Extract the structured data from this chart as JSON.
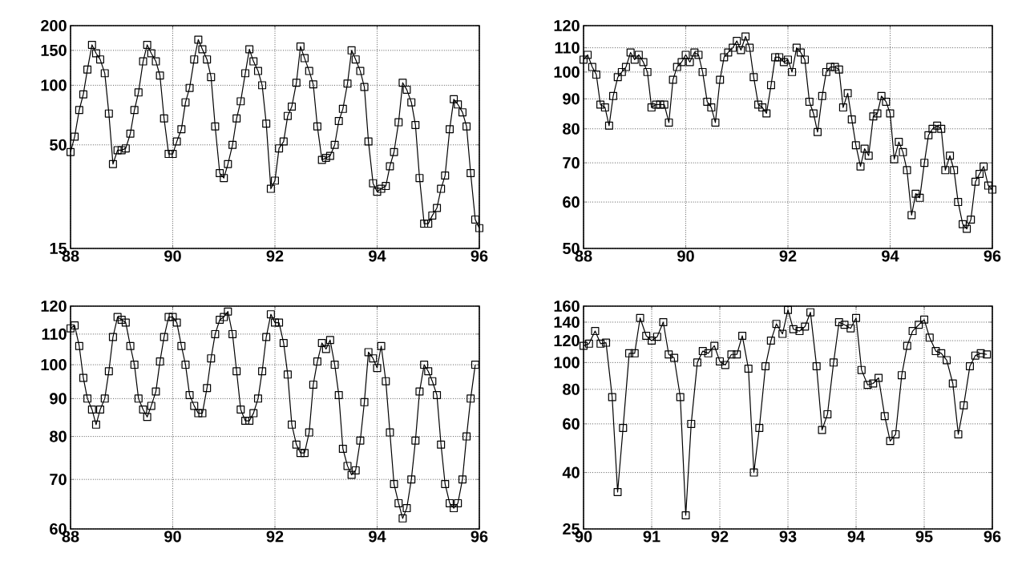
{
  "chart_data": [
    {
      "type": "line",
      "color": "#000000",
      "marker": "square",
      "log": "y",
      "grid": true,
      "xlim": [
        88,
        96
      ],
      "xticks": [
        88,
        90,
        92,
        94,
        96
      ],
      "ylim": [
        15,
        200
      ],
      "yticks": [
        15,
        50,
        100,
        150,
        200
      ],
      "x": [
        88,
        88.08,
        88.17,
        88.25,
        88.33,
        88.42,
        88.5,
        88.58,
        88.67,
        88.75,
        88.83,
        88.92,
        89,
        89.08,
        89.17,
        89.25,
        89.33,
        89.42,
        89.5,
        89.58,
        89.67,
        89.75,
        89.83,
        89.92,
        90,
        90.08,
        90.17,
        90.25,
        90.33,
        90.42,
        90.5,
        90.58,
        90.67,
        90.75,
        90.83,
        90.92,
        91,
        91.08,
        91.17,
        91.25,
        91.33,
        91.42,
        91.5,
        91.58,
        91.67,
        91.75,
        91.83,
        91.92,
        92,
        92.08,
        92.17,
        92.25,
        92.33,
        92.42,
        92.5,
        92.58,
        92.67,
        92.75,
        92.83,
        92.92,
        93,
        93.08,
        93.17,
        93.25,
        93.33,
        93.42,
        93.5,
        93.58,
        93.67,
        93.75,
        93.83,
        93.92,
        94,
        94.08,
        94.17,
        94.25,
        94.33,
        94.42,
        94.5,
        94.58,
        94.67,
        94.75,
        94.83,
        94.92,
        95,
        95.08,
        95.17,
        95.25,
        95.33,
        95.42,
        95.5,
        95.58,
        95.67,
        95.75,
        95.83,
        95.92,
        96
      ],
      "values": [
        46,
        55,
        75,
        90,
        120,
        160,
        145,
        135,
        115,
        72,
        40,
        47,
        47,
        48,
        57,
        75,
        92,
        132,
        160,
        145,
        132,
        112,
        68,
        45,
        45,
        52,
        60,
        82,
        97,
        135,
        170,
        152,
        135,
        110,
        62,
        36,
        34,
        40,
        50,
        68,
        83,
        115,
        152,
        132,
        118,
        100,
        64,
        30,
        33,
        48,
        52,
        70,
        78,
        103,
        157,
        137,
        118,
        101,
        62,
        42,
        43,
        44,
        50,
        66,
        76,
        102,
        150,
        135,
        118,
        98,
        52,
        32,
        29,
        30,
        31,
        39,
        46,
        65,
        103,
        95,
        82,
        63,
        34,
        20,
        20,
        22,
        24,
        30,
        35,
        60,
        85,
        80,
        73,
        62,
        36,
        21,
        19
      ]
    },
    {
      "type": "line",
      "color": "#000000",
      "marker": "square",
      "log": "y",
      "grid": true,
      "xlim": [
        88,
        96
      ],
      "xticks": [
        88,
        90,
        92,
        94,
        96
      ],
      "ylim": [
        50,
        120
      ],
      "yticks": [
        50,
        60,
        70,
        80,
        90,
        100,
        110,
        120
      ],
      "x": [
        88,
        88.08,
        88.17,
        88.25,
        88.33,
        88.42,
        88.5,
        88.58,
        88.67,
        88.75,
        88.83,
        88.92,
        89,
        89.08,
        89.17,
        89.25,
        89.33,
        89.42,
        89.5,
        89.58,
        89.67,
        89.75,
        89.83,
        89.92,
        90,
        90.08,
        90.17,
        90.25,
        90.33,
        90.42,
        90.5,
        90.58,
        90.67,
        90.75,
        90.83,
        90.92,
        91,
        91.08,
        91.17,
        91.25,
        91.33,
        91.42,
        91.5,
        91.58,
        91.67,
        91.75,
        91.83,
        91.92,
        92,
        92.08,
        92.17,
        92.25,
        92.33,
        92.42,
        92.5,
        92.58,
        92.67,
        92.75,
        92.83,
        92.92,
        93,
        93.08,
        93.17,
        93.25,
        93.33,
        93.42,
        93.5,
        93.58,
        93.67,
        93.75,
        93.83,
        93.92,
        94,
        94.08,
        94.17,
        94.25,
        94.33,
        94.42,
        94.5,
        94.58,
        94.67,
        94.75,
        94.83,
        94.92,
        95,
        95.08,
        95.17,
        95.25,
        95.33,
        95.42,
        95.5,
        95.58,
        95.67,
        95.75,
        95.83,
        95.92,
        96
      ],
      "values": [
        105,
        107,
        102,
        99,
        88,
        87,
        81,
        91,
        98,
        100,
        102,
        108,
        105,
        107,
        104,
        100,
        87,
        88,
        88,
        88,
        82,
        97,
        102,
        104,
        107,
        104,
        108,
        107,
        100,
        89,
        87,
        82,
        97,
        106,
        108,
        110,
        113,
        109,
        115,
        110,
        98,
        88,
        87,
        85,
        95,
        106,
        106,
        104,
        105,
        100,
        110,
        108,
        105,
        89,
        85,
        79,
        91,
        100,
        102,
        102,
        101,
        87,
        92,
        83,
        75,
        69,
        74,
        72,
        84,
        85,
        91,
        89,
        85,
        71,
        76,
        73,
        68,
        57,
        62,
        61,
        70,
        78,
        80,
        81,
        80,
        68,
        72,
        68,
        60,
        55,
        54,
        56,
        65,
        67,
        69,
        64,
        63
      ]
    },
    {
      "type": "line",
      "color": "#000000",
      "marker": "square",
      "log": "y",
      "grid": true,
      "xlim": [
        88,
        96
      ],
      "xticks": [
        88,
        90,
        92,
        94,
        96
      ],
      "ylim": [
        60,
        120
      ],
      "yticks": [
        60,
        70,
        80,
        90,
        100,
        110,
        120
      ],
      "x": [
        88,
        88.08,
        88.17,
        88.25,
        88.33,
        88.42,
        88.5,
        88.58,
        88.67,
        88.75,
        88.83,
        88.92,
        89,
        89.08,
        89.17,
        89.25,
        89.33,
        89.42,
        89.5,
        89.58,
        89.67,
        89.75,
        89.83,
        89.92,
        90,
        90.08,
        90.17,
        90.25,
        90.33,
        90.42,
        90.5,
        90.58,
        90.67,
        90.75,
        90.83,
        90.92,
        91,
        91.08,
        91.17,
        91.25,
        91.33,
        91.42,
        91.5,
        91.58,
        91.67,
        91.75,
        91.83,
        91.92,
        92,
        92.08,
        92.17,
        92.25,
        92.33,
        92.42,
        92.5,
        92.58,
        92.67,
        92.75,
        92.83,
        92.92,
        93,
        93.08,
        93.17,
        93.25,
        93.33,
        93.42,
        93.5,
        93.58,
        93.67,
        93.75,
        93.83,
        93.92,
        94,
        94.08,
        94.17,
        94.25,
        94.33,
        94.42,
        94.5,
        94.58,
        94.67,
        94.75,
        94.83,
        94.92,
        95,
        95.08,
        95.17,
        95.25,
        95.33,
        95.42,
        95.5,
        95.58,
        95.67,
        95.75,
        95.83,
        95.92
      ],
      "values": [
        112,
        113,
        106,
        96,
        90,
        87,
        83,
        87,
        90,
        98,
        109,
        116,
        115,
        114,
        106,
        100,
        90,
        87,
        85,
        88,
        92,
        101,
        109,
        116,
        116,
        114,
        106,
        100,
        91,
        88,
        86,
        86,
        93,
        102,
        110,
        115,
        116,
        118,
        110,
        98,
        87,
        84,
        84,
        86,
        90,
        98,
        109,
        117,
        114,
        114,
        107,
        97,
        83,
        78,
        76,
        76,
        81,
        94,
        101,
        107,
        105,
        108,
        100,
        91,
        77,
        73,
        71,
        72,
        79,
        89,
        104,
        102,
        99,
        106,
        95,
        81,
        69,
        65,
        62,
        64,
        70,
        79,
        92,
        100,
        98,
        95,
        91,
        78,
        69,
        65,
        64,
        65,
        70,
        80,
        90,
        100
      ]
    },
    {
      "type": "line",
      "color": "#000000",
      "marker": "square",
      "log": "y",
      "grid": true,
      "xlim": [
        90,
        96
      ],
      "xticks": [
        90,
        91,
        92,
        93,
        94,
        95,
        96
      ],
      "ylim": [
        25,
        160
      ],
      "yticks": [
        25,
        40,
        60,
        80,
        100,
        120,
        140,
        160
      ],
      "x": [
        90,
        90.08,
        90.17,
        90.25,
        90.33,
        90.42,
        90.5,
        90.58,
        90.67,
        90.75,
        90.83,
        90.92,
        91,
        91.08,
        91.17,
        91.25,
        91.33,
        91.42,
        91.5,
        91.58,
        91.67,
        91.75,
        91.83,
        91.92,
        92,
        92.08,
        92.17,
        92.25,
        92.33,
        92.42,
        92.5,
        92.58,
        92.67,
        92.75,
        92.83,
        92.92,
        93,
        93.08,
        93.17,
        93.25,
        93.33,
        93.42,
        93.5,
        93.58,
        93.67,
        93.75,
        93.83,
        93.92,
        94,
        94.08,
        94.17,
        94.25,
        94.33,
        94.42,
        94.5,
        94.58,
        94.67,
        94.75,
        94.83,
        94.92,
        95,
        95.08,
        95.17,
        95.25,
        95.33,
        95.42,
        95.5,
        95.58,
        95.67,
        95.75,
        95.83,
        95.92
      ],
      "values": [
        115,
        117,
        130,
        117,
        118,
        75,
        34,
        58,
        108,
        108,
        145,
        125,
        120,
        124,
        140,
        107,
        104,
        75,
        28,
        60,
        100,
        110,
        108,
        115,
        101,
        98,
        107,
        107,
        125,
        95,
        40,
        58,
        97,
        120,
        138,
        127,
        155,
        132,
        130,
        135,
        152,
        97,
        57,
        65,
        100,
        140,
        137,
        133,
        145,
        94,
        83,
        84,
        88,
        64,
        52,
        55,
        90,
        115,
        130,
        137,
        143,
        123,
        110,
        108,
        102,
        84,
        55,
        70,
        97,
        106,
        108,
        107
      ]
    }
  ]
}
